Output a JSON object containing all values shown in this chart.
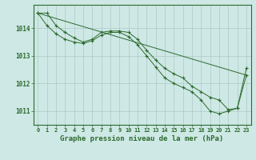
{
  "background_color": "#cde8e5",
  "grid_color": "#b0c8c5",
  "line_color": "#2d6a2d",
  "title": "Graphe pression niveau de la mer (hPa)",
  "title_fontsize": 6.5,
  "xlim": [
    -0.5,
    23.5
  ],
  "ylim": [
    1010.5,
    1014.85
  ],
  "yticks": [
    1011,
    1012,
    1013,
    1014
  ],
  "xticks": [
    0,
    1,
    2,
    3,
    4,
    5,
    6,
    7,
    8,
    9,
    10,
    11,
    12,
    13,
    14,
    15,
    16,
    17,
    18,
    19,
    20,
    21,
    22,
    23
  ],
  "series": [
    {
      "x": [
        0,
        1,
        2,
        3,
        4,
        5,
        6,
        7,
        8,
        9,
        10,
        11,
        12,
        13,
        14,
        15,
        16,
        17,
        18,
        19,
        20,
        21,
        22,
        23
      ],
      "y": [
        1014.55,
        1014.55,
        1014.1,
        1013.85,
        1013.65,
        1013.5,
        1013.6,
        1013.85,
        1013.9,
        1013.9,
        1013.85,
        1013.6,
        1013.2,
        1012.85,
        1012.55,
        1012.35,
        1012.2,
        1011.9,
        1011.7,
        1011.5,
        1011.4,
        1011.05,
        1011.1,
        1012.55
      ]
    },
    {
      "x": [
        0,
        1,
        2,
        3,
        4,
        5,
        6,
        7,
        8,
        9,
        10,
        11,
        12,
        13,
        14,
        15,
        16,
        17,
        18,
        19,
        20,
        21,
        22,
        23
      ],
      "y": [
        1014.55,
        1014.1,
        1013.8,
        1013.6,
        1013.5,
        1013.45,
        1013.55,
        1013.75,
        1013.85,
        1013.85,
        1013.7,
        1013.4,
        1013.0,
        1012.6,
        1012.2,
        1012.0,
        1011.85,
        1011.7,
        1011.4,
        1011.0,
        1010.9,
        1011.0,
        1011.1,
        1012.3
      ]
    },
    {
      "x": [
        0,
        23
      ],
      "y": [
        1014.55,
        1012.3
      ]
    }
  ]
}
